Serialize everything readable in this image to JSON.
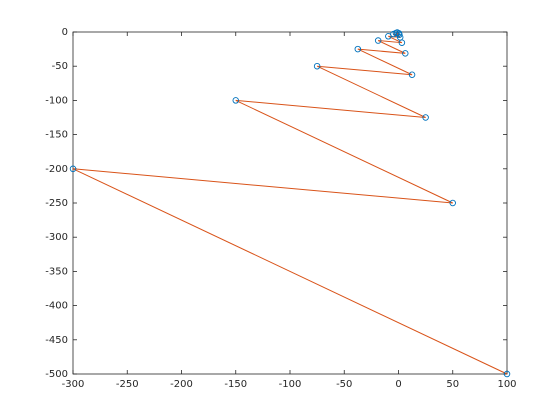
{
  "chart_data": {
    "type": "line",
    "x": [
      100,
      -300,
      50,
      -150,
      25,
      -75,
      12.5,
      -37.5,
      6.25,
      -18.75,
      3.125,
      -9.375,
      1.5625,
      -4.6875,
      0.78125,
      -2.34375,
      0.390625,
      -1.171875
    ],
    "series": [
      {
        "color": "#d95319",
        "marker": "o",
        "marker_color": "#0072bd",
        "values": [
          -500,
          -200,
          -250,
          -100,
          -125,
          -50,
          -62.5,
          -25,
          -31.25,
          -12.5,
          -15.625,
          -6.25,
          -7.8125,
          -3.125,
          -3.90625,
          -1.5625,
          -1.953125,
          -0.78125
        ]
      }
    ],
    "xlim": [
      -300,
      100
    ],
    "xticks": [
      -300,
      -250,
      -200,
      -150,
      -100,
      -50,
      0,
      50,
      100
    ],
    "ylim": [
      -500,
      0
    ],
    "yticks": [
      -500,
      -450,
      -400,
      -350,
      -300,
      -250,
      -200,
      -150,
      -100,
      -50,
      0
    ],
    "grid": false
  }
}
